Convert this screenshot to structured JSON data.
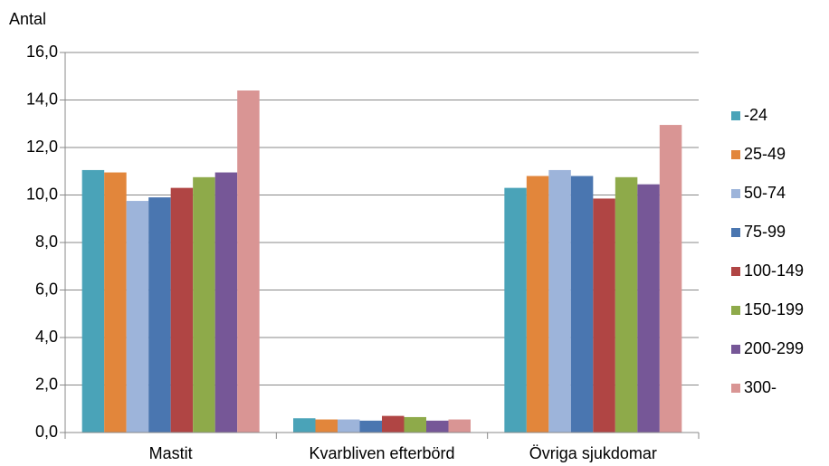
{
  "chart_data": {
    "type": "bar",
    "y_label": "Antal",
    "categories": [
      "Mastit",
      "Kvarbliven efterbörd",
      "Övriga sjukdomar"
    ],
    "series": [
      {
        "name": "-24",
        "color": "#4aa3b8",
        "values": [
          11.05,
          0.6,
          10.3
        ]
      },
      {
        "name": "25-49",
        "color": "#e2863b",
        "values": [
          10.95,
          0.55,
          10.8
        ]
      },
      {
        "name": "50-74",
        "color": "#9db4da",
        "values": [
          9.75,
          0.55,
          11.05
        ]
      },
      {
        "name": "75-99",
        "color": "#4a76b0",
        "values": [
          9.9,
          0.5,
          10.8
        ]
      },
      {
        "name": "100-149",
        "color": "#b04544",
        "values": [
          10.3,
          0.7,
          9.85
        ]
      },
      {
        "name": "150-199",
        "color": "#8eaa4a",
        "values": [
          10.75,
          0.65,
          10.75
        ]
      },
      {
        "name": "200-299",
        "color": "#765797",
        "values": [
          10.95,
          0.5,
          10.45
        ]
      },
      {
        "name": "300-",
        "color": "#d99594",
        "values": [
          14.4,
          0.55,
          12.95
        ]
      }
    ],
    "ylim": [
      0,
      16
    ],
    "yticks": [
      {
        "value": 0,
        "label": "0,0"
      },
      {
        "value": 2,
        "label": "2,0"
      },
      {
        "value": 4,
        "label": "4,0"
      },
      {
        "value": 6,
        "label": "6,0"
      },
      {
        "value": 8,
        "label": "8,0"
      },
      {
        "value": 10,
        "label": "10,0"
      },
      {
        "value": 12,
        "label": "12,0"
      },
      {
        "value": 14,
        "label": "14,0"
      },
      {
        "value": 16,
        "label": "16,0"
      }
    ],
    "grid": true,
    "legend": "right"
  }
}
